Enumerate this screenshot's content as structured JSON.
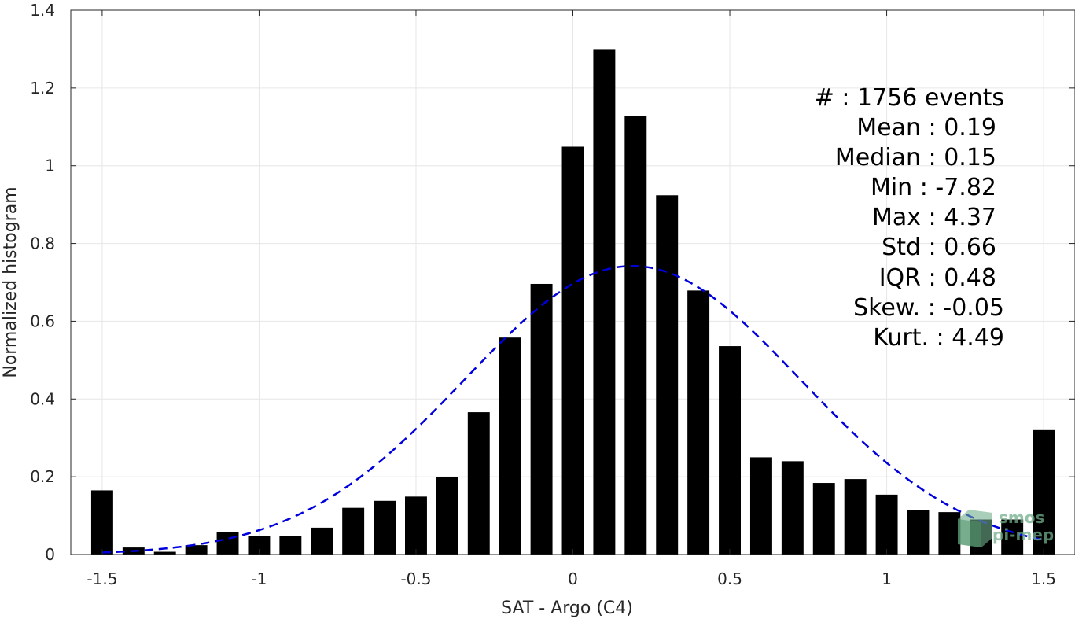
{
  "chart_data": {
    "type": "bar",
    "xlabel": "SAT - Argo (C4)",
    "ylabel": "Normalized histogram",
    "xlim": [
      -1.6,
      1.6
    ],
    "ylim": [
      0,
      1.4
    ],
    "x_ticks": [
      -1.5,
      -1,
      -0.5,
      0,
      0.5,
      1,
      1.5
    ],
    "x_tick_labels": [
      "-1.5",
      "-1",
      "-0.5",
      "0",
      "0.5",
      "1",
      "1.5"
    ],
    "y_ticks": [
      0,
      0.2,
      0.4,
      0.6,
      0.8,
      1,
      1.2,
      1.4
    ],
    "y_tick_labels": [
      "0",
      "0.2",
      "0.4",
      "0.6",
      "0.8",
      "1",
      "1.2",
      "1.4"
    ],
    "grid": true,
    "bar_width": 0.07,
    "bar_color": "#000000",
    "series": [
      {
        "x": [
          -1.5,
          -1.4,
          -1.3,
          -1.2,
          -1.1,
          -1.0,
          -0.9,
          -0.8,
          -0.7,
          -0.6,
          -0.5,
          -0.4,
          -0.3,
          -0.2,
          -0.1,
          0.0,
          0.1,
          0.2,
          0.3,
          0.4,
          0.5,
          0.6,
          0.7,
          0.8,
          0.9,
          1.0,
          1.1,
          1.2,
          1.3,
          1.4,
          1.5
        ],
        "values": [
          0.165,
          0.018,
          0.007,
          0.024,
          0.058,
          0.047,
          0.047,
          0.069,
          0.12,
          0.138,
          0.149,
          0.2,
          0.366,
          0.558,
          0.696,
          1.049,
          1.3,
          1.128,
          0.924,
          0.679,
          0.536,
          0.25,
          0.24,
          0.184,
          0.194,
          0.154,
          0.114,
          0.109,
          0.09,
          0.09,
          0.32
        ]
      }
    ],
    "fit_curve": {
      "style": "dashed",
      "color": "#0000dd",
      "mean": 0.19,
      "std": 0.535,
      "peak": 0.742,
      "x_range": [
        -1.5,
        1.5
      ]
    },
    "annotations": [
      {
        "label": "#",
        "value": "1756 events"
      },
      {
        "label": "Mean",
        "value": "0.19"
      },
      {
        "label": "Median",
        "value": "0.15"
      },
      {
        "label": "Min",
        "value": "-7.82"
      },
      {
        "label": "Max",
        "value": "4.37"
      },
      {
        "label": "Std",
        "value": "0.66"
      },
      {
        "label": "IQR",
        "value": "0.48"
      },
      {
        "label": "Skew.",
        "value": "-0.05"
      },
      {
        "label": "Kurt.",
        "value": "4.49"
      }
    ],
    "stats_text": {
      "count": "#  : 1756 events",
      "mean": "Mean : 0.19",
      "median": "Median : 0.15",
      "min": "Min : -7.82",
      "max": "Max : 4.37",
      "std": "Std : 0.66",
      "iqr": "IQR : 0.48",
      "skew": "Skew. : -0.05",
      "kurt": "Kurt. : 4.49"
    },
    "watermark": {
      "line1": "smos",
      "line2": "pi-mep",
      "color": "#6fae8a"
    }
  }
}
